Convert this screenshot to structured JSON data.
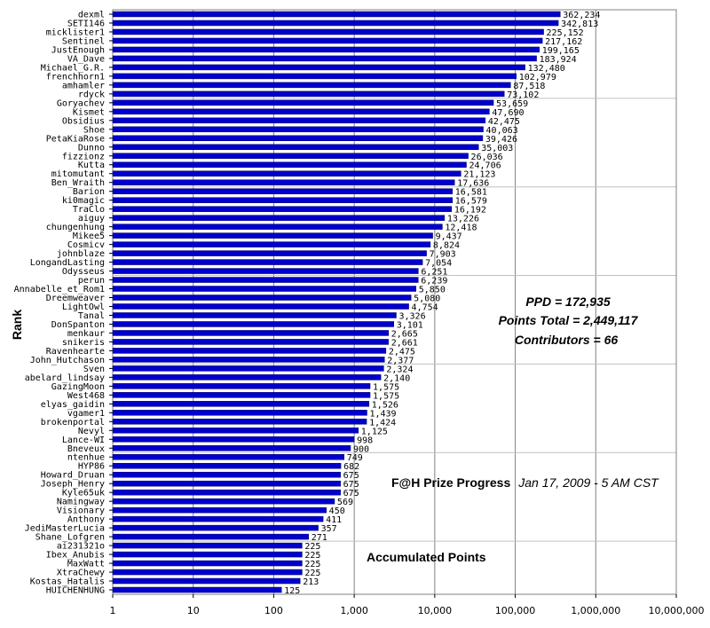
{
  "chart_data": {
    "type": "bar",
    "orientation": "horizontal",
    "x_scale": "log",
    "xlim": [
      1,
      10000000
    ],
    "x_ticks": [
      "1",
      "10",
      "100",
      "1,000",
      "10,000",
      "100,000",
      "1,000,000",
      "10,000,000"
    ],
    "ylabel": "Rank",
    "grid": true,
    "bar_color": "#0000CC",
    "categories": [
      "dexml",
      "SETI146",
      "micklister1",
      "Sentinel",
      "JustEnough",
      "VA_Dave",
      "Michael_G.R.",
      "frenchhorn1",
      "amhamler",
      "rdyck",
      "Goryachev",
      "Kismet",
      "Obsidius",
      "Shoe",
      "PetaKiaRose",
      "Dunno",
      "fizzionz",
      "Kutta",
      "mitomutant",
      "Ben_Wraith",
      "Barion",
      "ki0magic",
      "TraClo",
      "aiguy",
      "chungenhung",
      "Mikee5",
      "Cosmicv",
      "johnblaze",
      "LongandLasting",
      "Odysseus",
      "perun",
      "Annabelle_et_Rom1",
      "Dreemweaver",
      "LightOwl",
      "Tanal",
      "DonSpanton",
      "menkaur",
      "snikeris",
      "Ravenhearte",
      "John_Hutchason",
      "Sven",
      "abelard_lindsay",
      "GazingMoon",
      "West468",
      "elyas_gaidin",
      "vgamer1",
      "brokenportal",
      "Nevyl",
      "Lance-WI",
      "Bneveux",
      "ntenhue",
      "HYP86",
      "Howard_Druan",
      "Joseph_Henry",
      "Kyle65uk",
      "Namingway",
      "Visionary",
      "Anthony",
      "JediMasterLucia",
      "Shane_Lofgren",
      "ai231321o",
      "Ibex_Anubis",
      "MaxWatt",
      "XtraChewy",
      "Kostas_Hatalis",
      "HUICHENHUNG"
    ],
    "values": [
      362234,
      342813,
      225152,
      217162,
      199165,
      183924,
      132480,
      102979,
      87518,
      73102,
      53659,
      47690,
      42475,
      40063,
      39426,
      35003,
      26036,
      24706,
      21123,
      17636,
      16581,
      16579,
      16192,
      13226,
      12418,
      9437,
      8824,
      7903,
      7054,
      6251,
      6239,
      5850,
      5080,
      4754,
      3326,
      3101,
      2665,
      2661,
      2475,
      2377,
      2324,
      2140,
      1575,
      1575,
      1526,
      1439,
      1424,
      1125,
      998,
      900,
      749,
      682,
      675,
      675,
      675,
      569,
      450,
      411,
      357,
      271,
      225,
      225,
      225,
      225,
      213,
      125
    ],
    "value_labels": [
      "362,234",
      "342,813",
      "225,152",
      "217,162",
      "199,165",
      "183,924",
      "132,480",
      "102,979",
      "87,518",
      "73,102",
      "53,659",
      "47,690",
      "42,475",
      "40,063",
      "39,426",
      "35,003",
      "26,036",
      "24,706",
      "21,123",
      "17,636",
      "16,581",
      "16,579",
      "16,192",
      "13,226",
      "12,418",
      "9,437",
      "8,824",
      "7,903",
      "7,054",
      "6,251",
      "6,239",
      "5,850",
      "5,080",
      "4,754",
      "3,326",
      "3,101",
      "2,665",
      "2,661",
      "2,475",
      "2,377",
      "2,324",
      "2,140",
      "1,575",
      "1,575",
      "1,526",
      "1,439",
      "1,424",
      "1,125",
      "998",
      "900",
      "749",
      "682",
      "675",
      "675",
      "675",
      "569",
      "450",
      "411",
      "357",
      "271",
      "225",
      "225",
      "225",
      "225",
      "213",
      "125"
    ],
    "annotations": {
      "ppd": "PPD = 172,935",
      "points_total": "Points Total = 2,449,117",
      "contributors": "Contributors = 66",
      "title_main": "F@H Prize Progress",
      "title_sub": "Jan 17, 2009 - 5 AM CST",
      "footer": "Accumulated Points"
    }
  }
}
